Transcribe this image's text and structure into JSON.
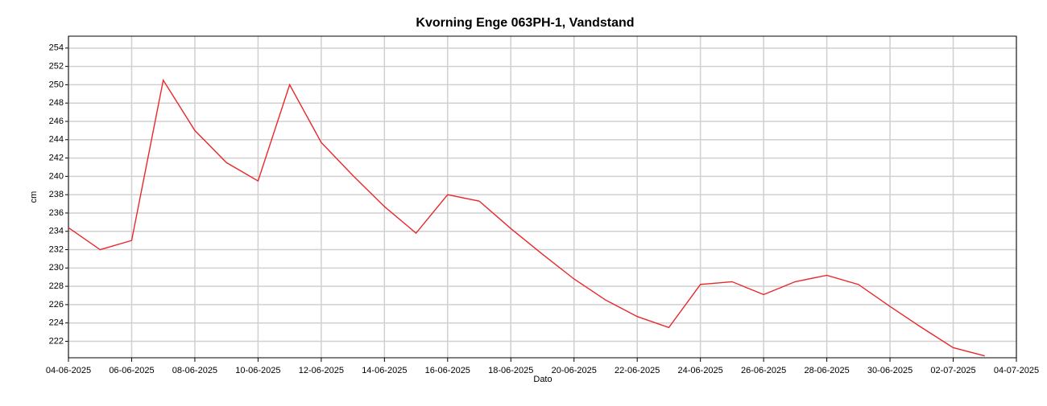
{
  "chart_data": {
    "type": "line",
    "title": "Kvorning Enge 063PH-1, Vandstand",
    "xlabel": "Dato",
    "ylabel": "cm",
    "x": [
      "04-06-2025",
      "05-06-2025",
      "06-06-2025",
      "07-06-2025",
      "08-06-2025",
      "09-06-2025",
      "10-06-2025",
      "11-06-2025",
      "12-06-2025",
      "13-06-2025",
      "14-06-2025",
      "15-06-2025",
      "16-06-2025",
      "17-06-2025",
      "18-06-2025",
      "19-06-2025",
      "20-06-2025",
      "21-06-2025",
      "22-06-2025",
      "23-06-2025",
      "24-06-2025",
      "25-06-2025",
      "26-06-2025",
      "27-06-2025",
      "28-06-2025",
      "29-06-2025",
      "30-06-2025",
      "01-07-2025",
      "02-07-2025",
      "03-07-2025"
    ],
    "series": [
      {
        "name": "Vandstand",
        "color": "#e8282b",
        "values": [
          234.4,
          232.0,
          233.0,
          250.5,
          245.0,
          241.5,
          239.5,
          250.0,
          243.7,
          240.1,
          236.7,
          233.8,
          238.0,
          237.3,
          234.3,
          231.5,
          228.8,
          226.5,
          224.7,
          223.5,
          228.2,
          228.5,
          227.1,
          228.5,
          229.2,
          228.2,
          225.8,
          223.5,
          221.3,
          220.4
        ]
      }
    ],
    "xlim": [
      "04-06-2025",
      "04-07-2025"
    ],
    "xticks": [
      "04-06-2025",
      "06-06-2025",
      "08-06-2025",
      "10-06-2025",
      "12-06-2025",
      "14-06-2025",
      "16-06-2025",
      "18-06-2025",
      "20-06-2025",
      "22-06-2025",
      "24-06-2025",
      "26-06-2025",
      "28-06-2025",
      "30-06-2025",
      "02-07-2025",
      "04-07-2025"
    ],
    "ylim": [
      220.2,
      255.3
    ],
    "yticks": [
      222,
      224,
      226,
      228,
      230,
      232,
      234,
      236,
      238,
      240,
      242,
      244,
      246,
      248,
      250,
      252,
      254
    ],
    "grid": true
  }
}
